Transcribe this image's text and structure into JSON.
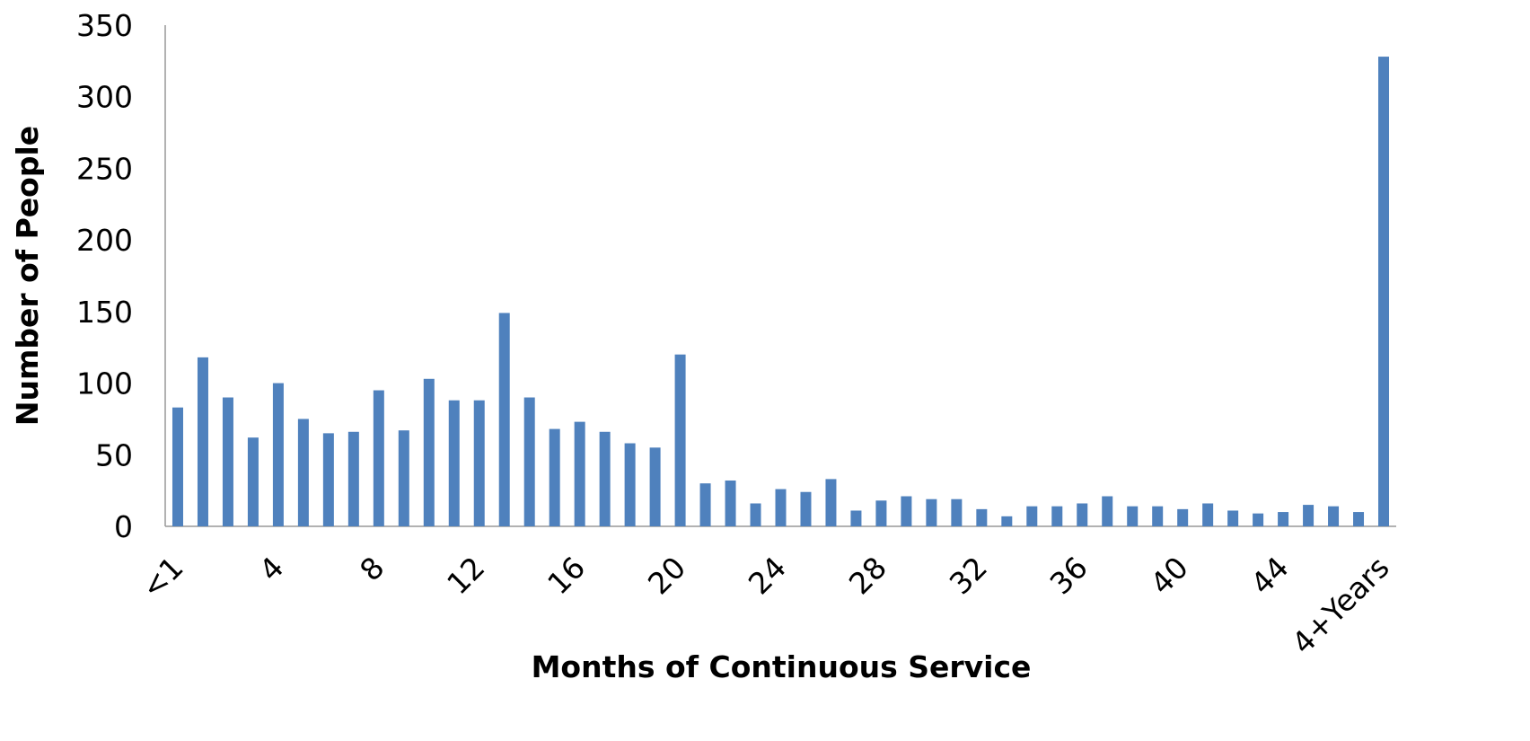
{
  "chart_data": {
    "type": "bar",
    "x_label": "Months of Continuous Service",
    "y_label": "Number of People",
    "categories": [
      "<1",
      null,
      null,
      null,
      "4",
      null,
      null,
      null,
      "8",
      null,
      null,
      null,
      "12",
      null,
      null,
      null,
      "16",
      null,
      null,
      null,
      "20",
      null,
      null,
      null,
      "24",
      null,
      null,
      null,
      "28",
      null,
      null,
      null,
      "32",
      null,
      null,
      null,
      "36",
      null,
      null,
      null,
      "40",
      null,
      null,
      null,
      "44",
      null,
      null,
      null,
      "4+Years"
    ],
    "values": [
      83,
      118,
      90,
      62,
      100,
      75,
      65,
      66,
      95,
      67,
      103,
      88,
      88,
      149,
      90,
      68,
      73,
      66,
      58,
      55,
      120,
      30,
      32,
      16,
      26,
      24,
      33,
      11,
      18,
      21,
      19,
      19,
      12,
      7,
      14,
      14,
      16,
      21,
      14,
      14,
      12,
      16,
      11,
      9,
      10,
      15,
      14,
      10,
      328
    ],
    "color": "#4f81bd",
    "ylim": [
      0,
      350
    ],
    "yticks": [
      0,
      50,
      100,
      150,
      200,
      250,
      300,
      350
    ],
    "grid": false
  }
}
